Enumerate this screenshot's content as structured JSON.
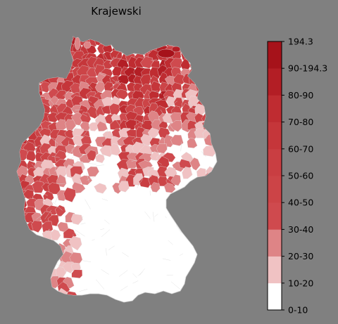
{
  "map": {
    "title": "Krajewski",
    "region": "Germany",
    "unit_type": "electoral districts / counties",
    "colors": {
      "background": "#808080",
      "no_data_or_low": "#ffffff",
      "border": "#c8c8c8"
    }
  },
  "legend": {
    "bins": [
      {
        "label": "0-10",
        "color": "#ffffff"
      },
      {
        "label": "10-20",
        "color": "#f0c2c3"
      },
      {
        "label": "20-30",
        "color": "#de8486"
      },
      {
        "label": "30-40",
        "color": "#cf4a4e"
      },
      {
        "label": "40-50",
        "color": "#cc4447"
      },
      {
        "label": "50-60",
        "color": "#c93e42"
      },
      {
        "label": "60-70",
        "color": "#c5363a"
      },
      {
        "label": "70-80",
        "color": "#bf2c31"
      },
      {
        "label": "80-90",
        "color": "#b31e25"
      },
      {
        "label": "90-194.3",
        "color": "#a6121a"
      },
      {
        "label": "194.3",
        "color": "#980c15"
      }
    ],
    "tick_labels": [
      "0-10",
      "10-20",
      "20-30",
      "30-40",
      "40-50",
      "50-60",
      "60-70",
      "70-80",
      "80-90",
      "90-194.3",
      "194.3"
    ]
  }
}
